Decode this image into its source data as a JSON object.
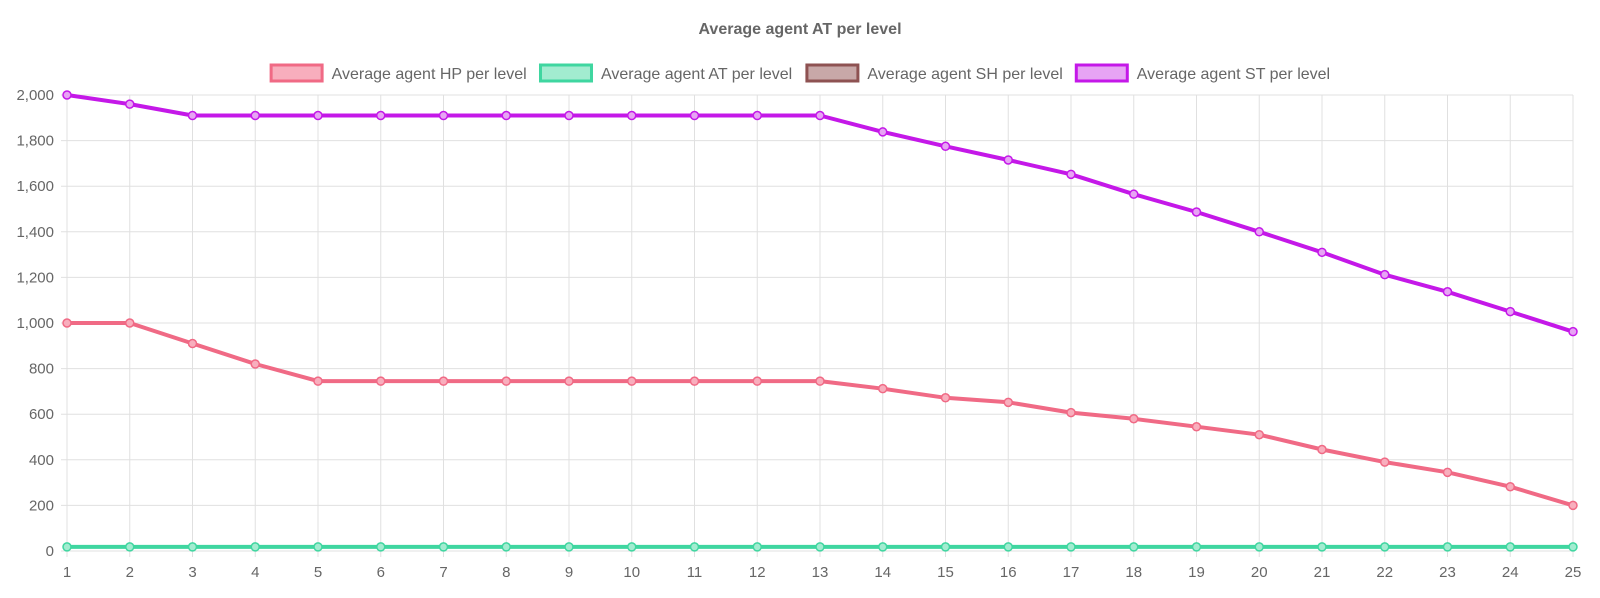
{
  "chart_data": {
    "type": "line",
    "title": "Average agent AT per level",
    "xlabel": "",
    "ylabel": "",
    "x": [
      1,
      2,
      3,
      4,
      5,
      6,
      7,
      8,
      9,
      10,
      11,
      12,
      13,
      14,
      15,
      16,
      17,
      18,
      19,
      20,
      21,
      22,
      23,
      24,
      25
    ],
    "ylim": [
      0,
      2000
    ],
    "yticks": [
      0,
      200,
      400,
      600,
      800,
      1000,
      1200,
      1400,
      1600,
      1800,
      2000
    ],
    "ytick_labels": [
      "0",
      "200",
      "400",
      "600",
      "800",
      "1,000",
      "1,200",
      "1,400",
      "1,600",
      "1,800",
      "2,000"
    ],
    "grid": true,
    "legend_position": "top",
    "series": [
      {
        "name": "Average agent HP per level",
        "color": "#f06a85",
        "fill": "#f8aebd",
        "values": [
          1000,
          1000,
          910,
          820,
          745,
          745,
          745,
          745,
          745,
          745,
          745,
          745,
          745,
          712,
          672,
          652,
          607,
          580,
          545,
          510,
          445,
          390,
          345,
          282,
          200
        ]
      },
      {
        "name": "Average agent AT per level",
        "color": "#3fd6a0",
        "fill": "#a2ecd0",
        "values": [
          18,
          18,
          18,
          18,
          18,
          18,
          18,
          18,
          18,
          18,
          18,
          18,
          18,
          18,
          18,
          18,
          18,
          18,
          18,
          18,
          18,
          18,
          18,
          18,
          18
        ]
      },
      {
        "name": "Average agent SH per level",
        "color": "#8e5252",
        "fill": "#c8a8a8",
        "values": [
          null,
          null,
          null,
          null,
          null,
          null,
          null,
          null,
          null,
          null,
          null,
          null,
          null,
          null,
          null,
          null,
          null,
          null,
          null,
          null,
          null,
          null,
          null,
          null,
          null
        ]
      },
      {
        "name": "Average agent ST per level",
        "color": "#c418e8",
        "fill": "#e7a4f4",
        "values": [
          2000,
          1960,
          1910,
          1910,
          1910,
          1910,
          1910,
          1910,
          1910,
          1910,
          1910,
          1910,
          1910,
          1838,
          1775,
          1715,
          1652,
          1565,
          1487,
          1400,
          1310,
          1212,
          1137,
          1050,
          962
        ]
      }
    ]
  }
}
